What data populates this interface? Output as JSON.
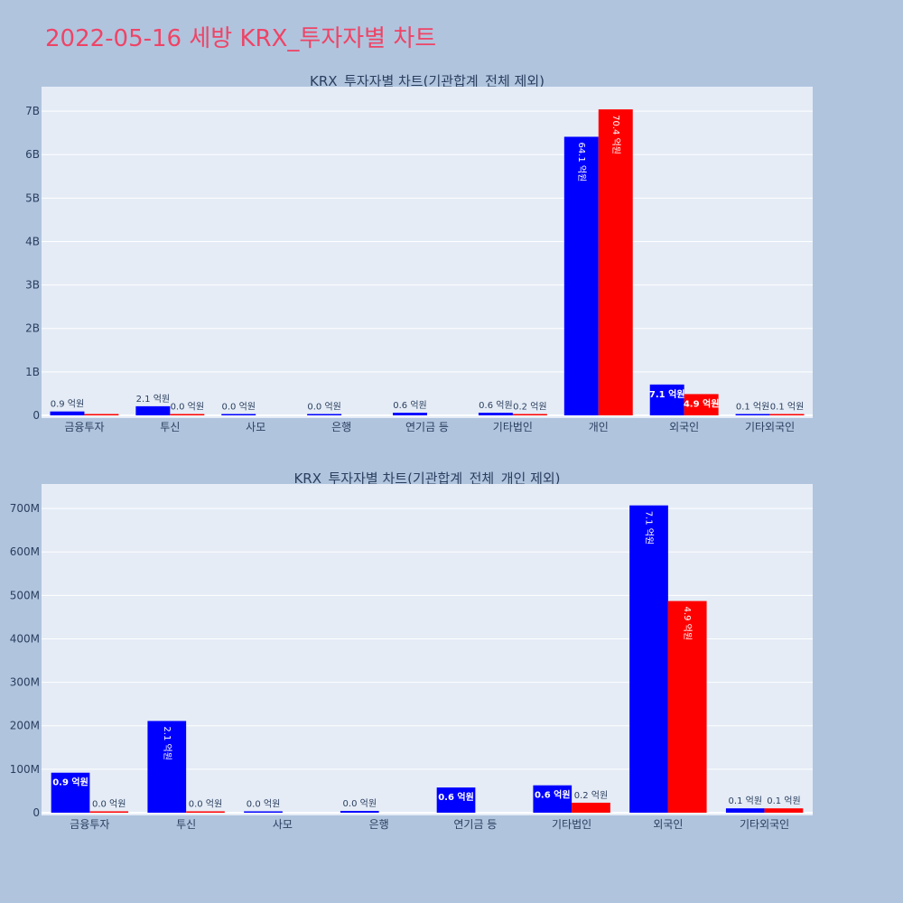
{
  "page_title": "2022-05-16 세방 KRX_투자자별 차트",
  "colors": {
    "series_1": "#0000ff",
    "series_2": "#ff0000",
    "plot_bg": "#e5ecf6",
    "page_bg": "#b0c4de",
    "title": "#ee4466"
  },
  "chart_data": [
    {
      "type": "bar",
      "title": "KRX_투자자별 차트(기관합계_전체 제외)",
      "categories": [
        "금융투자",
        "투신",
        "사모",
        "은행",
        "연기금 등",
        "기타법인",
        "개인",
        "외국인",
        "기타외국인"
      ],
      "series": [
        {
          "values": [
            90000000,
            210000000,
            0,
            2000000,
            60000000,
            60000000,
            6410000000,
            710000000,
            10000000
          ],
          "labels": [
            "0.9 억원",
            "2.1 억원",
            "0.0 억원",
            "0.0 억원",
            "0.6 억원",
            "0.6 억원",
            "64.1 억원",
            "7.1 억원",
            "0.1 억원"
          ]
        },
        {
          "values": [
            1000000,
            1000000,
            null,
            null,
            null,
            20000000,
            7040000000,
            490000000,
            10000000
          ],
          "labels": [
            "",
            "0.0 억원",
            "",
            "",
            "",
            "0.2 억원",
            "70.4 억원",
            "4.9 억원",
            "0.1 억원"
          ]
        }
      ],
      "yticks": [
        "0",
        "1B",
        "2B",
        "3B",
        "4B",
        "5B",
        "6B",
        "7B"
      ],
      "ylim": [
        0,
        7500000000
      ]
    },
    {
      "type": "bar",
      "title": "KRX_투자자별 차트(기관합계_전체_개인 제외)",
      "categories": [
        "금융투자",
        "투신",
        "사모",
        "은행",
        "연기금 등",
        "기타법인",
        "외국인",
        "기타외국인"
      ],
      "series": [
        {
          "values": [
            92000000,
            211000000,
            1000000,
            4000000,
            58000000,
            63000000,
            707000000,
            10000000
          ],
          "labels": [
            "0.9 억원",
            "2.1 억원",
            "0.0 억원",
            "0.0 억원",
            "0.6 억원",
            "0.6 억원",
            "7.1 억원",
            "0.1 억원"
          ]
        },
        {
          "values": [
            1000000,
            1000000,
            null,
            null,
            null,
            23000000,
            487000000,
            10000000
          ],
          "labels": [
            "0.0 억원",
            "0.0 억원",
            "",
            "",
            "",
            "0.2 억원",
            "4.9 억원",
            "0.1 억원"
          ]
        }
      ],
      "yticks": [
        "0",
        "100M",
        "200M",
        "300M",
        "400M",
        "500M",
        "600M",
        "700M"
      ],
      "ylim": [
        0,
        750000000
      ]
    }
  ]
}
